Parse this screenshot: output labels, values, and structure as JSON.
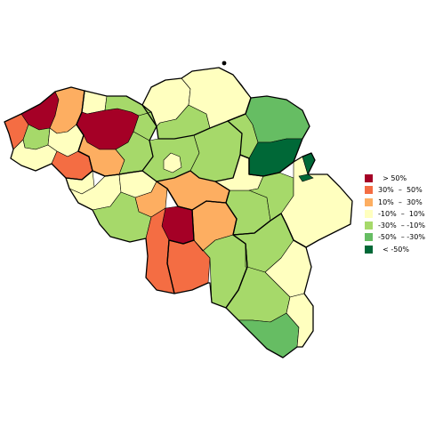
{
  "map": {
    "country": "Belgium",
    "colors": {
      "gt50": "#a50026",
      "p30_50": "#f46d43",
      "p10_30": "#fdae61",
      "m10_10": "#ffffbf",
      "m30_m10": "#a6d96a",
      "m50_m30": "#66bd63",
      "lt_m50": "#006837"
    },
    "legend": [
      {
        "label": "  > 50%",
        "class": "gt50"
      },
      {
        "label": "30%  –  50%",
        "class": "p30_50"
      },
      {
        "label": "10%  –  30%",
        "class": "p10_30"
      },
      {
        "label": "-10%  –  10%",
        "class": "m10_10"
      },
      {
        "label": "-30%  – -10%",
        "class": "m30_m10"
      },
      {
        "label": "-50%  – -30%",
        "class": "m50_m30"
      },
      {
        "label": "  < -50%",
        "class": "lt_m50"
      }
    ],
    "districts": [
      {
        "id": "brugge",
        "class": "gt50"
      },
      {
        "id": "oostende",
        "class": "p30_50"
      },
      {
        "id": "diksmuide",
        "class": "m30_m10"
      },
      {
        "id": "ieper",
        "class": "m10_10"
      },
      {
        "id": "tielt",
        "class": "p10_30"
      },
      {
        "id": "roeselare",
        "class": "m10_10"
      },
      {
        "id": "kortrijk",
        "class": "p30_50"
      },
      {
        "id": "eeklo",
        "class": "m10_10"
      },
      {
        "id": "gent",
        "class": "gt50"
      },
      {
        "id": "oudenaarde",
        "class": "p10_30"
      },
      {
        "id": "sint-niklaas",
        "class": "m30_m10"
      },
      {
        "id": "dendermonde",
        "class": "m30_m10"
      },
      {
        "id": "aalst",
        "class": "m30_m10"
      },
      {
        "id": "antwerpen",
        "class": "m10_10"
      },
      {
        "id": "mechelen",
        "class": "m30_m10"
      },
      {
        "id": "turnhout",
        "class": "m10_10"
      },
      {
        "id": "halle-vilvoorde",
        "class": "m30_m10"
      },
      {
        "id": "brussel",
        "class": "m10_10"
      },
      {
        "id": "leuven",
        "class": "m30_m10"
      },
      {
        "id": "hasselt",
        "class": "m30_m10"
      },
      {
        "id": "maaseik",
        "class": "m50_m30"
      },
      {
        "id": "tongeren",
        "class": "lt_m50"
      },
      {
        "id": "moeskroen",
        "class": "m10_10"
      },
      {
        "id": "tournai",
        "class": "m10_10"
      },
      {
        "id": "ath",
        "class": "m10_10"
      },
      {
        "id": "soignies",
        "class": "p10_30"
      },
      {
        "id": "nivelles",
        "class": "p10_30"
      },
      {
        "id": "mons",
        "class": "m30_m10"
      },
      {
        "id": "charleroi",
        "class": "gt50"
      },
      {
        "id": "thuin",
        "class": "p30_50"
      },
      {
        "id": "philippeville",
        "class": "p30_50"
      },
      {
        "id": "namur",
        "class": "p10_30"
      },
      {
        "id": "dinant",
        "class": "m30_m10"
      },
      {
        "id": "huy",
        "class": "m30_m10"
      },
      {
        "id": "waremme",
        "class": "m10_10"
      },
      {
        "id": "liege",
        "class": "m30_m10"
      },
      {
        "id": "verviers",
        "class": "m10_10"
      },
      {
        "id": "marche",
        "class": "m30_m10"
      },
      {
        "id": "bastogne",
        "class": "m10_10"
      },
      {
        "id": "neufchateau",
        "class": "m30_m10"
      },
      {
        "id": "virton",
        "class": "m50_m30"
      },
      {
        "id": "arlon",
        "class": "m10_10"
      },
      {
        "id": "eupen",
        "class": "lt_m50"
      }
    ]
  }
}
